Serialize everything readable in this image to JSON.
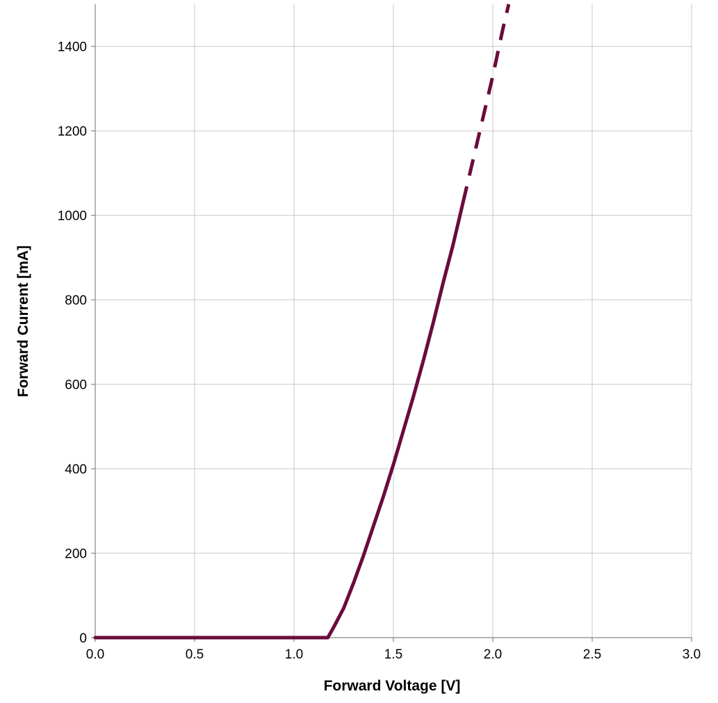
{
  "chart_data": {
    "type": "line",
    "xlabel": "Forward Voltage [V]",
    "ylabel": "Forward Current [mA]",
    "xlim": [
      0,
      3.0
    ],
    "ylim": [
      0,
      1500
    ],
    "x_ticks": [
      "0.0",
      "0.5",
      "1.0",
      "1.5",
      "2.0",
      "2.5",
      "3.0"
    ],
    "y_ticks": [
      "0",
      "200",
      "400",
      "600",
      "800",
      "1000",
      "1200",
      "1400"
    ],
    "x_tick_values": [
      0,
      0.5,
      1.0,
      1.5,
      2.0,
      2.5,
      3.0
    ],
    "y_tick_values": [
      0,
      200,
      400,
      600,
      800,
      1000,
      1200,
      1400
    ],
    "grid": true,
    "series": [
      {
        "style": "solid",
        "color": "#6b0b3c",
        "x": [
          0.0,
          0.5,
          1.0,
          1.17,
          1.2,
          1.25,
          1.3,
          1.35,
          1.4,
          1.45,
          1.5,
          1.55,
          1.6,
          1.65,
          1.7,
          1.75,
          1.8,
          1.85
        ],
        "y": [
          0,
          0,
          0,
          0,
          25,
          70,
          130,
          195,
          265,
          335,
          410,
          490,
          570,
          655,
          745,
          840,
          930,
          1030
        ]
      },
      {
        "style": "dashed",
        "color": "#6b0b3c",
        "x": [
          1.85,
          1.9,
          1.95,
          2.0,
          2.05,
          2.08
        ],
        "y": [
          1030,
          1130,
          1230,
          1330,
          1440,
          1500
        ]
      }
    ]
  }
}
